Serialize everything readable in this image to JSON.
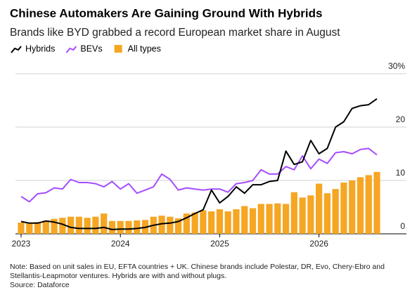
{
  "chart_data": {
    "type": "combo",
    "title": "Chinese Automakers Are Gaining Ground With Hybrids",
    "subtitle": "Brands like BYD grabbed a record European market share in August",
    "note": "Note: Based on unit sales in EU, EFTA countries + UK. Chinese brands include Polestar, DR, Evo, Chery-Ebro and Stellantis-Leapmotor ventures. Hybrids are with and without plugs.",
    "source": "Source: Dataforce",
    "categories": [
      "2023",
      null,
      null,
      null,
      null,
      null,
      null,
      null,
      null,
      null,
      null,
      null,
      "2024",
      null,
      null,
      null,
      null,
      null,
      null,
      null,
      null,
      null,
      null,
      null,
      "2025",
      null,
      null,
      null,
      null,
      null,
      null,
      null,
      null,
      null,
      null,
      null,
      "2026",
      null,
      null,
      null,
      null,
      null,
      null,
      null
    ],
    "series": [
      {
        "name": "Hybrids",
        "type": "line",
        "color": "#000000",
        "values": [
          2.3,
          2.0,
          2.0,
          2.4,
          2.2,
          1.8,
          1.2,
          1.0,
          1.0,
          1.0,
          1.2,
          0.8,
          0.9,
          0.9,
          1.0,
          1.2,
          1.6,
          1.9,
          2.0,
          2.3,
          3.0,
          3.8,
          4.5,
          8.2,
          5.8,
          7.0,
          8.8,
          7.6,
          9.2,
          9.2,
          9.8,
          10.0,
          15.5,
          13.0,
          13.5,
          17.5,
          15.0,
          16.0,
          20.0,
          21.0,
          23.5,
          24.0,
          24.2,
          25.3
        ]
      },
      {
        "name": "BEVs",
        "type": "line",
        "color": "#a64dff",
        "values": [
          7.0,
          6.0,
          7.5,
          7.7,
          8.6,
          8.4,
          10.2,
          9.6,
          9.6,
          9.4,
          8.8,
          9.8,
          8.4,
          9.4,
          7.6,
          8.2,
          8.8,
          11.2,
          10.2,
          8.2,
          8.6,
          8.4,
          8.2,
          8.4,
          8.4,
          7.8,
          9.4,
          9.6,
          10.0,
          12.0,
          11.2,
          11.2,
          12.6,
          12.0,
          14.6,
          12.2,
          14.0,
          13.2,
          15.2,
          15.4,
          15.0,
          15.8,
          16.0,
          14.8
        ]
      },
      {
        "name": "All types",
        "type": "bar",
        "color": "#f5a623",
        "values": [
          2.1,
          2.0,
          2.2,
          2.5,
          2.8,
          3.0,
          3.2,
          3.2,
          3.0,
          3.2,
          3.8,
          2.4,
          2.4,
          2.4,
          2.5,
          2.6,
          3.2,
          3.4,
          3.2,
          2.9,
          3.8,
          4.0,
          4.4,
          4.2,
          4.6,
          4.2,
          4.6,
          5.2,
          4.8,
          5.6,
          5.6,
          5.7,
          5.6,
          7.8,
          6.8,
          7.2,
          9.4,
          7.6,
          8.4,
          9.6,
          10.0,
          10.6,
          11.0,
          11.6
        ]
      }
    ],
    "ylim": [
      0,
      30
    ],
    "yticks": [
      0,
      10,
      20,
      {
        "value": 30,
        "label": "30%"
      }
    ],
    "grid": true
  }
}
